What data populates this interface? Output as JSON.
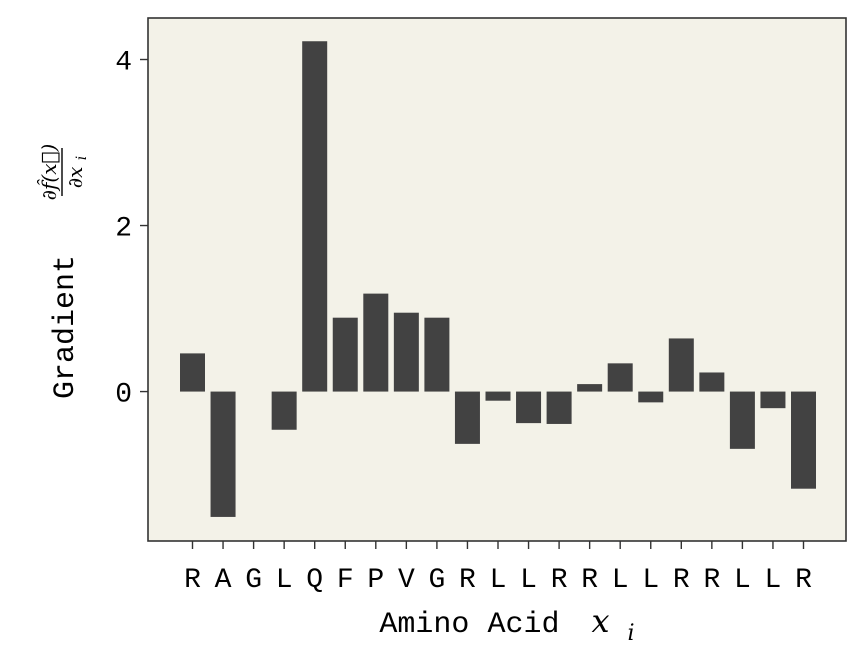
{
  "chart_data": {
    "type": "bar",
    "categories": [
      "R",
      "A",
      "G",
      "L",
      "Q",
      "F",
      "P",
      "V",
      "G",
      "R",
      "L",
      "L",
      "R",
      "R",
      "L",
      "L",
      "R",
      "R",
      "L",
      "L",
      "R"
    ],
    "values": [
      0.46,
      -1.51,
      0.0,
      -0.46,
      4.22,
      0.89,
      1.18,
      0.95,
      0.89,
      -0.63,
      -0.11,
      -0.38,
      -0.39,
      0.09,
      0.34,
      -0.13,
      0.64,
      0.23,
      -0.69,
      -0.2,
      -1.17
    ],
    "xlabel": "Amino Acid",
    "xlabel_math": "x",
    "xlabel_math_sub": "i",
    "ylabel": "Gradient",
    "ylabel_math_num": "∂f̂(x⃗)",
    "ylabel_math_den": "∂x",
    "ylabel_math_den_sub": "i",
    "yticks": [
      0,
      2,
      4
    ],
    "ylim": [
      -1.8,
      4.5
    ],
    "grid": false,
    "colors": {
      "bar": "#424242",
      "plot_bg": "#f3f2e8",
      "axes": "#333333"
    }
  }
}
